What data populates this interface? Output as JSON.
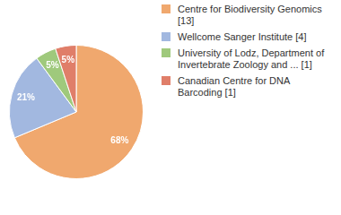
{
  "chart_data": {
    "type": "pie",
    "categories": [
      "Centre for Biodiversity Genomics [13]",
      "Wellcome Sanger Institute [4]",
      "University of Lodz, Department of Invertebrate Zoology and ... [1]",
      "Canadian Centre for DNA Barcoding [1]"
    ],
    "values": [
      68,
      21,
      5,
      5
    ],
    "value_labels": [
      "68%",
      "21%",
      "5%",
      "5%"
    ],
    "colors": [
      "#f0a86e",
      "#a2b8e0",
      "#9fc97c",
      "#e07e69"
    ],
    "data_labels": true,
    "legend": "right"
  }
}
